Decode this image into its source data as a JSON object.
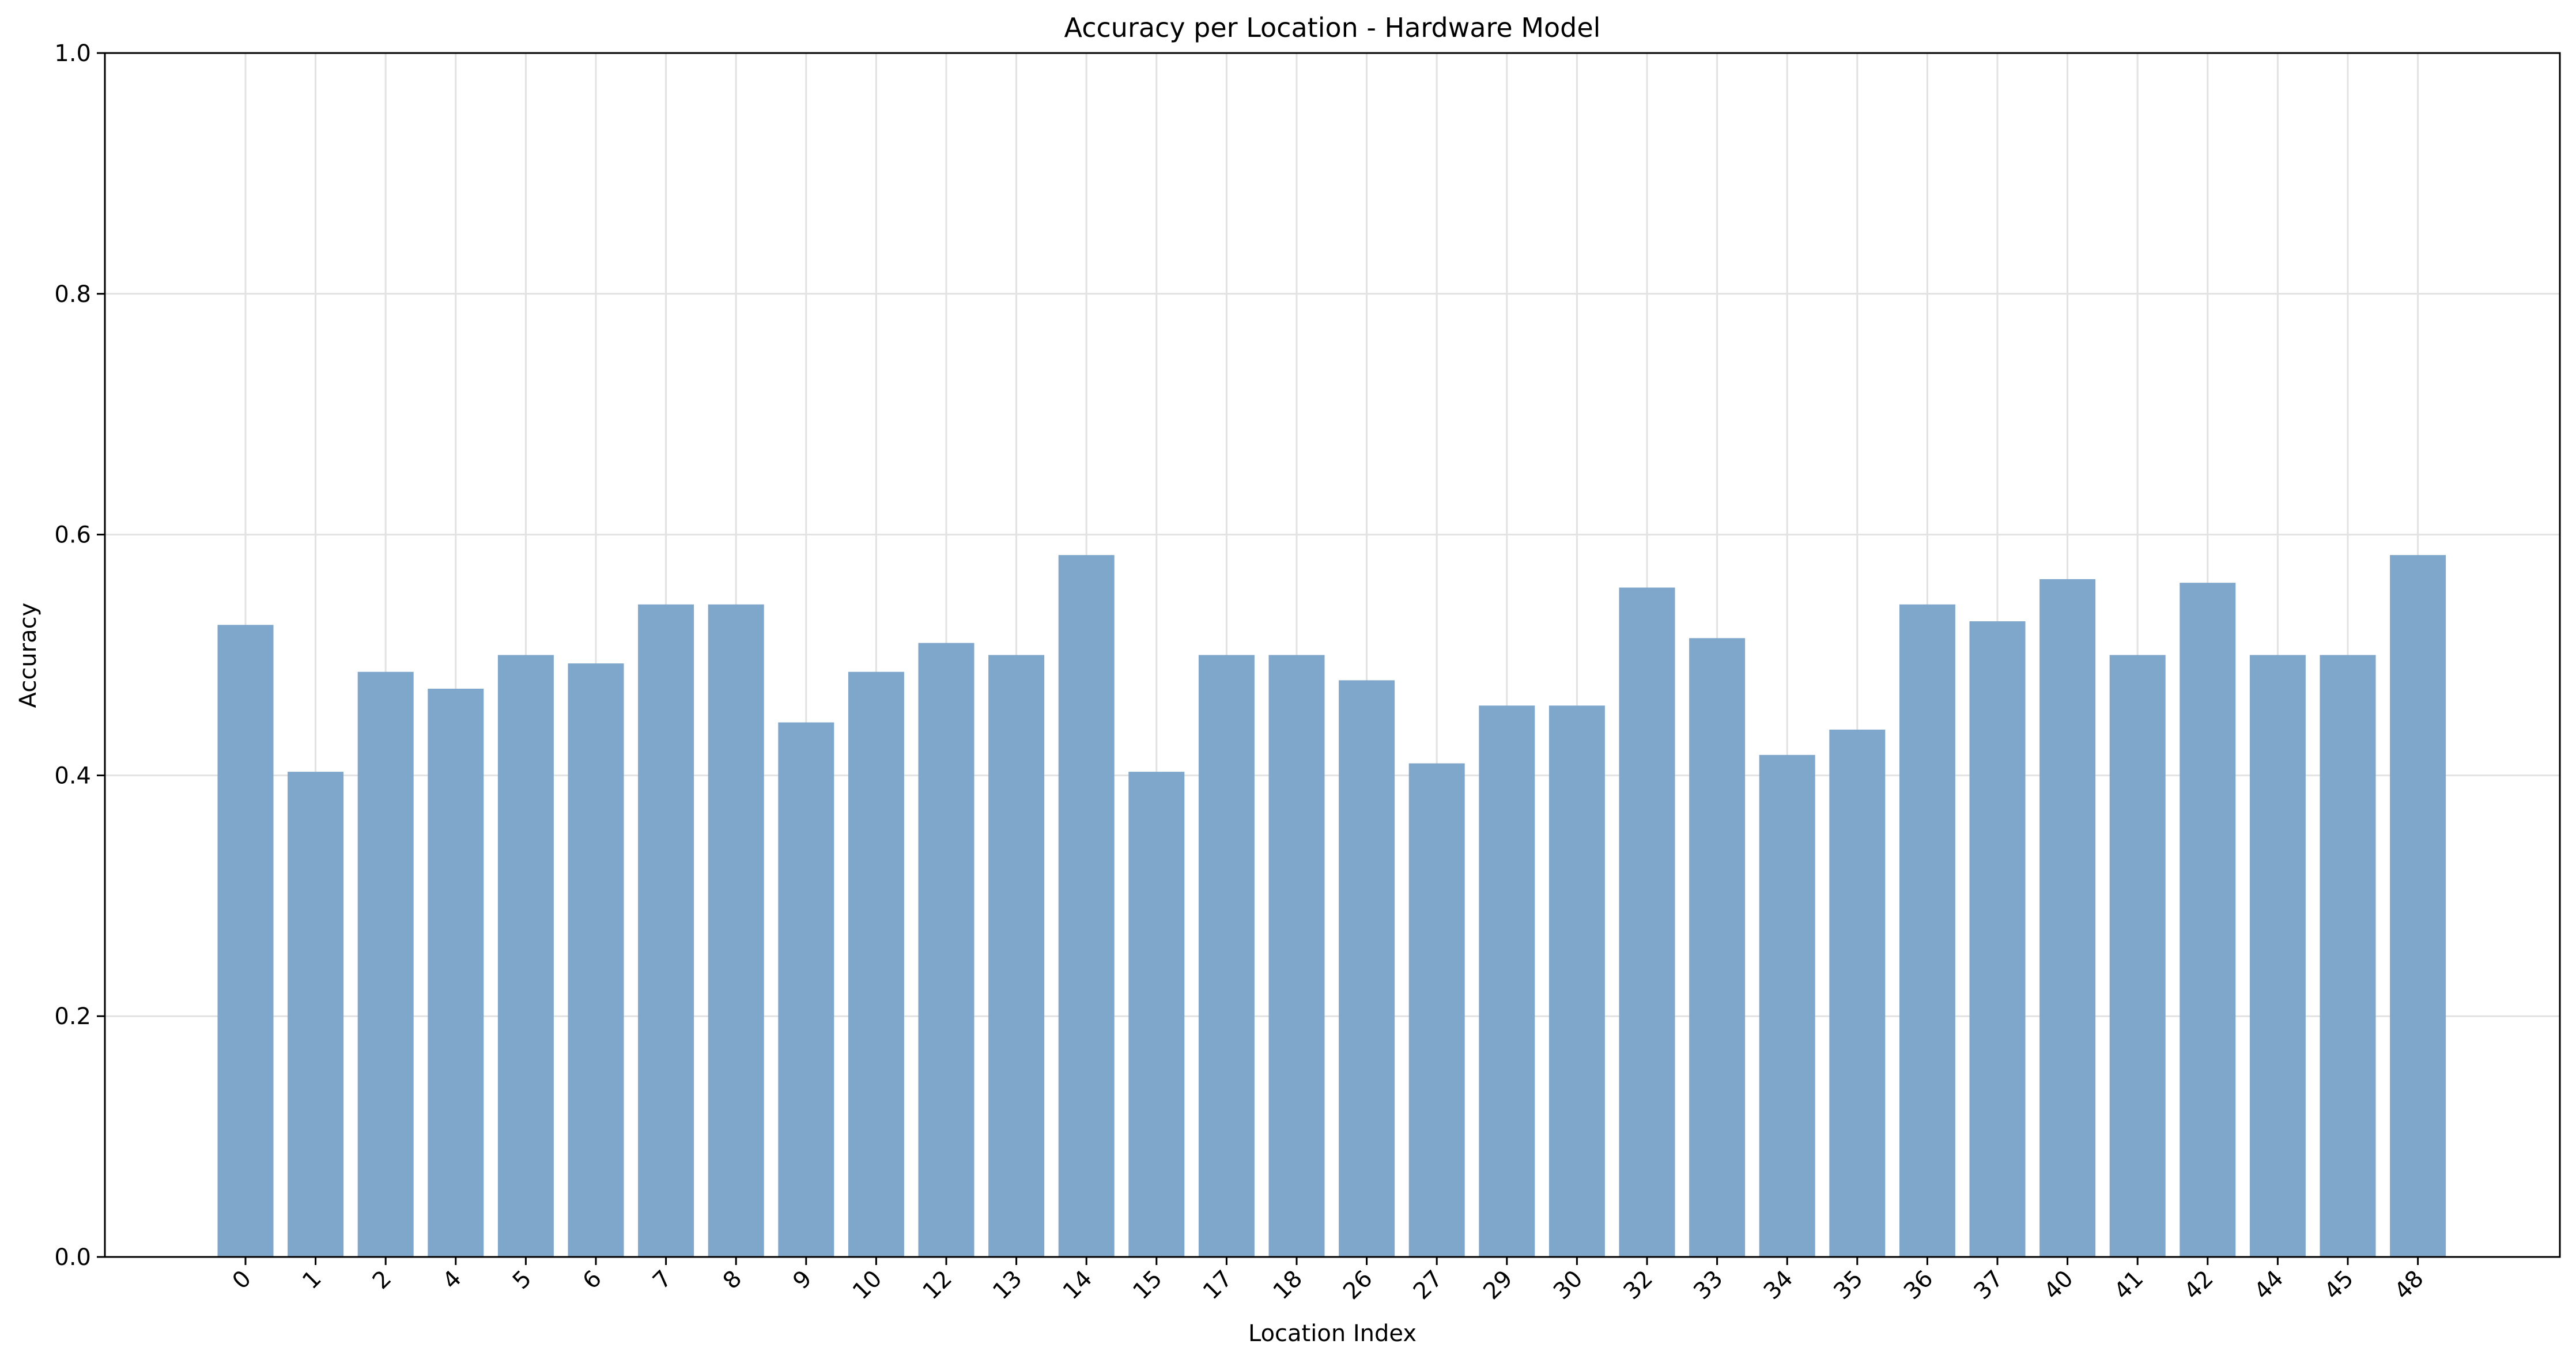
{
  "chart_data": {
    "type": "bar",
    "title": "Accuracy per Location - Hardware Model",
    "xlabel": "Location Index",
    "ylabel": "Accuracy",
    "ylim": [
      0,
      1.0
    ],
    "yticks": [
      "0.0",
      "0.2",
      "0.4",
      "0.6",
      "0.8",
      "1.0"
    ],
    "grid": true,
    "bar_color": "#7fa7cb",
    "categories": [
      "0",
      "1",
      "2",
      "4",
      "5",
      "6",
      "7",
      "8",
      "9",
      "10",
      "12",
      "13",
      "14",
      "15",
      "17",
      "18",
      "26",
      "27",
      "29",
      "30",
      "32",
      "33",
      "34",
      "35",
      "36",
      "37",
      "40",
      "41",
      "42",
      "44",
      "45",
      "48"
    ],
    "values": [
      0.525,
      0.403,
      0.486,
      0.472,
      0.5,
      0.493,
      0.542,
      0.542,
      0.444,
      0.486,
      0.51,
      0.5,
      0.583,
      0.403,
      0.5,
      0.5,
      0.479,
      0.41,
      0.458,
      0.458,
      0.556,
      0.514,
      0.417,
      0.438,
      0.542,
      0.528,
      0.563,
      0.5,
      0.56,
      0.5,
      0.5,
      0.583
    ]
  }
}
